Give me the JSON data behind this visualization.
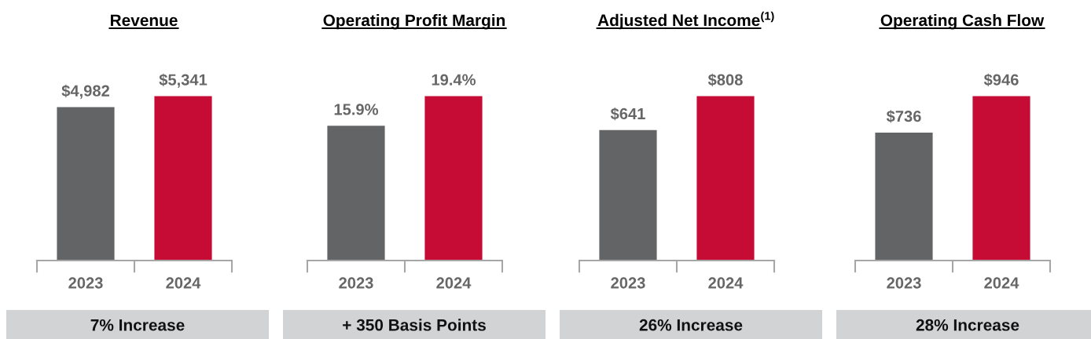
{
  "chart_data": [
    {
      "type": "bar",
      "title": "Revenue",
      "categories": [
        "2023",
        "2024"
      ],
      "values": [
        4982,
        5341
      ],
      "colors": [
        "#636466",
        "#c60c34"
      ],
      "value_labels": [
        "$4,982",
        "$5,341"
      ],
      "tick_labels": "x",
      "annotations": [
        "7% Increase"
      ]
    },
    {
      "type": "bar",
      "title": "Operating Profit Margin",
      "categories": [
        "2023",
        "2024"
      ],
      "values": [
        15.9,
        19.4
      ],
      "colors": [
        "#636466",
        "#c60c34"
      ],
      "value_labels": [
        "15.9%",
        "19.4%"
      ],
      "tick_labels": "x",
      "annotations": [
        "+ 350 Basis Points"
      ]
    },
    {
      "type": "bar",
      "title": "Adjusted Net Income$^{(1)}$",
      "categories": [
        "2023",
        "2024"
      ],
      "values": [
        641,
        808
      ],
      "colors": [
        "#636466",
        "#c60c34"
      ],
      "value_labels": [
        "$641",
        "$808"
      ],
      "tick_labels": "x",
      "annotations": [
        "26% Increase"
      ]
    },
    {
      "type": "bar",
      "title": "Operating Cash Flow",
      "categories": [
        "2023",
        "2024"
      ],
      "values": [
        736,
        946
      ],
      "colors": [
        "#636466",
        "#c60c34"
      ],
      "value_labels": [
        "$736",
        "$946"
      ],
      "tick_labels": "x",
      "annotations": [
        "28% Increase"
      ]
    }
  ]
}
